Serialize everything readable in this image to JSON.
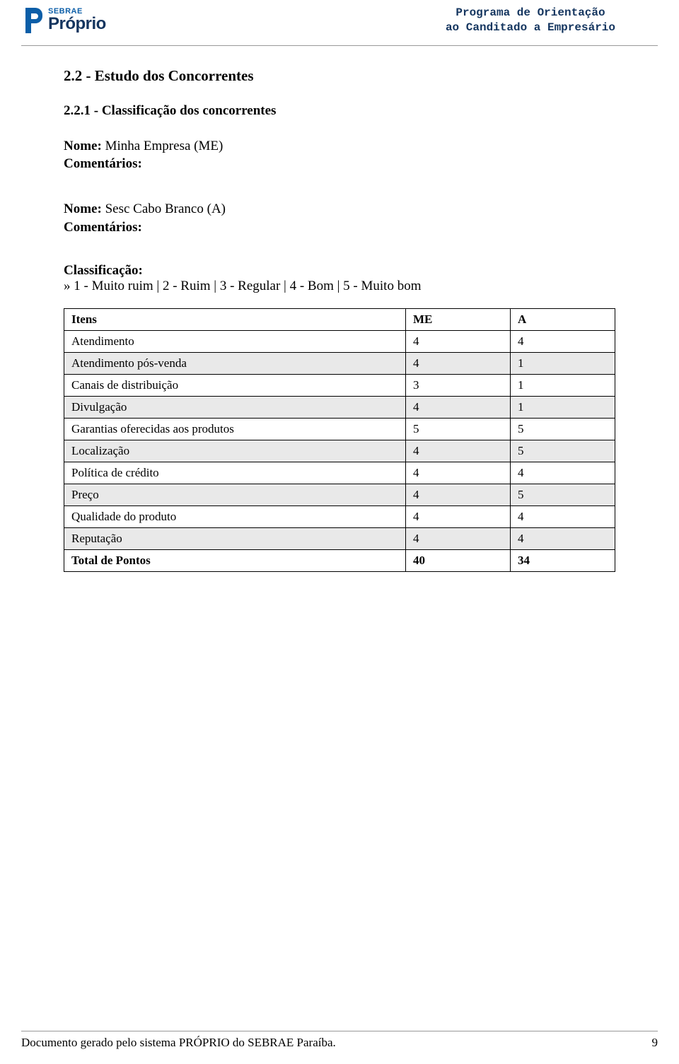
{
  "header": {
    "logo_small": "SEBRAE",
    "logo_large": "Próprio",
    "title_line1": "Programa de Orientação",
    "title_line2": "ao Canditado a Empresário",
    "logo_accent_color": "#0b5ea8",
    "logo_text_color": "#14355f"
  },
  "section": {
    "title": "2.2 - Estudo dos Concorrentes",
    "subtitle": "2.2.1 - Classificação dos concorrentes"
  },
  "competitors": [
    {
      "name_label": "Nome:",
      "name_value": "Minha Empresa   (ME)",
      "comments_label": "Comentários:"
    },
    {
      "name_label": "Nome:",
      "name_value": "Sesc Cabo Branco   (A)",
      "comments_label": "Comentários:"
    }
  ],
  "classification": {
    "heading": "Classificação:",
    "scale": "» 1 - Muito ruim | 2 - Ruim | 3 - Regular | 4 - Bom | 5 - Muito bom"
  },
  "table": {
    "columns": [
      "Itens",
      "ME",
      "A"
    ],
    "rows": [
      {
        "label": "Atendimento",
        "me": "4",
        "a": "4",
        "alt": false
      },
      {
        "label": "Atendimento pós-venda",
        "me": "4",
        "a": "1",
        "alt": true
      },
      {
        "label": "Canais de distribuição",
        "me": "3",
        "a": "1",
        "alt": false
      },
      {
        "label": "Divulgação",
        "me": "4",
        "a": "1",
        "alt": true
      },
      {
        "label": "Garantias oferecidas aos produtos",
        "me": "5",
        "a": "5",
        "alt": false
      },
      {
        "label": "Localização",
        "me": "4",
        "a": "5",
        "alt": true
      },
      {
        "label": "Política de crédito",
        "me": "4",
        "a": "4",
        "alt": false
      },
      {
        "label": "Preço",
        "me": "4",
        "a": "5",
        "alt": true
      },
      {
        "label": "Qualidade do produto",
        "me": "4",
        "a": "4",
        "alt": false
      },
      {
        "label": "Reputação",
        "me": "4",
        "a": "4",
        "alt": true
      },
      {
        "label": "Total de Pontos",
        "me": "40",
        "a": "34",
        "alt": false,
        "bold": true
      }
    ]
  },
  "footer": {
    "text": "Documento gerado pelo sistema PRÓPRIO do SEBRAE Paraíba.",
    "page": "9"
  }
}
